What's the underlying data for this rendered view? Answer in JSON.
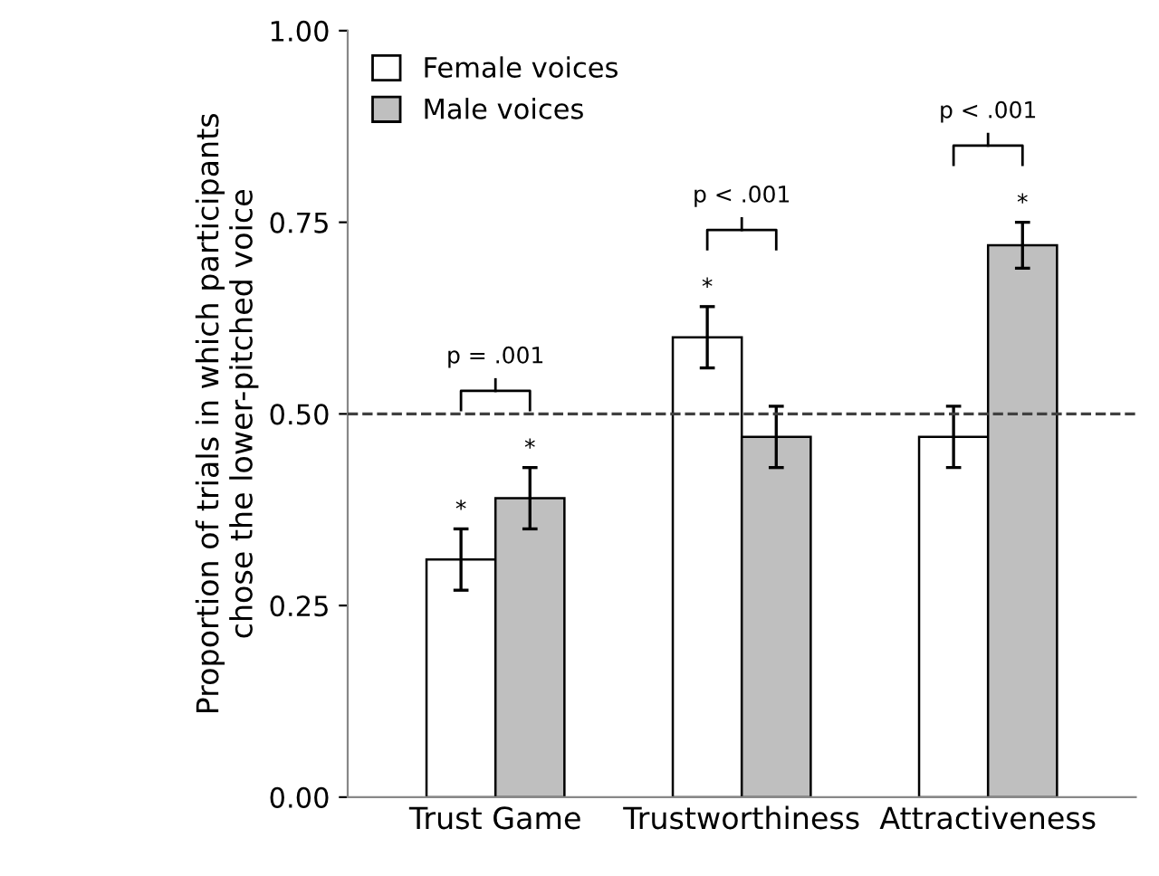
{
  "chart_data": {
    "type": "bar",
    "ylabel": "Proportion of trials in which participants\nchose the lower-pitched voice",
    "categories": [
      "Trust Game",
      "Trustworthiness",
      "Attractiveness"
    ],
    "series": [
      {
        "name": "Female voices",
        "color": "#ffffff",
        "values": [
          0.31,
          0.6,
          0.47
        ],
        "errors": [
          0.04,
          0.04,
          0.04
        ],
        "value_labels": [
          "*",
          "*",
          null
        ]
      },
      {
        "name": "Male voices",
        "color": "#bfbfbf",
        "values": [
          0.39,
          0.47,
          0.72
        ],
        "errors": [
          0.04,
          0.04,
          0.03
        ],
        "value_labels": [
          "*",
          null,
          "*"
        ]
      }
    ],
    "ylim": [
      0,
      1
    ],
    "yticks": [
      {
        "value": 0,
        "label": "0.00"
      },
      {
        "value": 0.25,
        "label": "0.25"
      },
      {
        "value": 0.5,
        "label": "0.50"
      },
      {
        "value": 0.75,
        "label": "0.75"
      },
      {
        "value": 1,
        "label": "1.00"
      }
    ],
    "ref_lines": [
      {
        "axis": "y",
        "value": 0.5,
        "line_style": "dashed",
        "color": "#404040"
      }
    ],
    "annotations": [
      "p = .001",
      "p < .001",
      "p < .001"
    ],
    "legend": "top left",
    "grid": false
  }
}
